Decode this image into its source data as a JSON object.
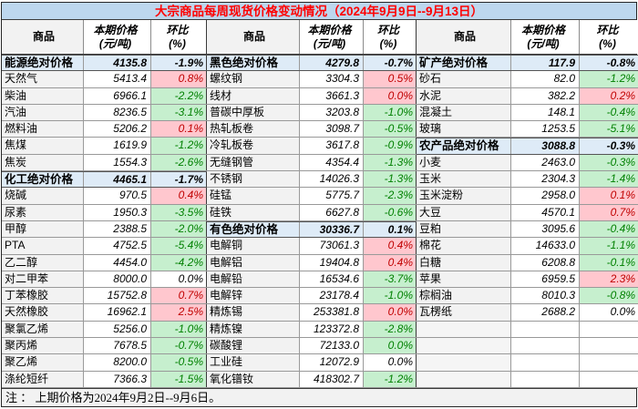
{
  "title": "大宗商品每周现货价格变动情况（2024年9月9日--9月13日）",
  "note": "注 ： 上期价格为2024年9月2日--9月6日。",
  "header": {
    "commodity": "商品",
    "price_l1": "本期价格",
    "price_l2": "(元/吨)",
    "pct_l1": "环比",
    "pct_l2": "(%)"
  },
  "colors": {
    "title_bg": "#BDD7EE",
    "title_text": "#FF0000",
    "category_row_bg": "#DEEBF7",
    "commodity_name_bg": "#F2F2F2",
    "increase_bg": "#FFC7CE",
    "increase_text": "#C00000",
    "decrease_bg": "#C6EFCE",
    "decrease_text": "#008000"
  },
  "groups": [
    {
      "rows": [
        {
          "name": "能源绝对价格",
          "price": "4135.8",
          "pct": "-1.9%",
          "t": "cat"
        },
        {
          "name": "天然气",
          "price": "5413.4",
          "pct": "0.8%",
          "t": "up"
        },
        {
          "name": "柴油",
          "price": "6966.1",
          "pct": "-2.2%",
          "t": "down"
        },
        {
          "name": "汽油",
          "price": "8236.5",
          "pct": "-3.1%",
          "t": "down"
        },
        {
          "name": "燃料油",
          "price": "5206.2",
          "pct": "0.1%",
          "t": "up"
        },
        {
          "name": "焦煤",
          "price": "1619.9",
          "pct": "-1.2%",
          "t": "down"
        },
        {
          "name": "焦炭",
          "price": "1554.3",
          "pct": "-2.6%",
          "t": "down"
        },
        {
          "name": "化工绝对价格",
          "price": "4465.1",
          "pct": "-1.7%",
          "t": "cat"
        },
        {
          "name": "烧碱",
          "price": "970.5",
          "pct": "0.4%",
          "t": "up"
        },
        {
          "name": "尿素",
          "price": "1950.3",
          "pct": "-3.5%",
          "t": "down"
        },
        {
          "name": "甲醇",
          "price": "2388.5",
          "pct": "-2.0%",
          "t": "down"
        },
        {
          "name": "PTA",
          "price": "4752.5",
          "pct": "-5.4%",
          "t": "down"
        },
        {
          "name": "乙二醇",
          "price": "4454.0",
          "pct": "-4.2%",
          "t": "down"
        },
        {
          "name": "对二甲苯",
          "price": "8000.0",
          "pct": "0.0%",
          "t": "zero"
        },
        {
          "name": "丁苯橡胶",
          "price": "15752.8",
          "pct": "0.7%",
          "t": "up"
        },
        {
          "name": "天然橡胶",
          "price": "16962.1",
          "pct": "2.5%",
          "t": "up"
        },
        {
          "name": "聚氯乙烯",
          "price": "5256.0",
          "pct": "-1.0%",
          "t": "down"
        },
        {
          "name": "聚丙烯",
          "price": "7678.5",
          "pct": "-0.7%",
          "t": "down"
        },
        {
          "name": "聚乙烯",
          "price": "8200.0",
          "pct": "-0.5%",
          "t": "down"
        },
        {
          "name": "涤纶短纤",
          "price": "7366.3",
          "pct": "-1.5%",
          "t": "down"
        }
      ]
    },
    {
      "rows": [
        {
          "name": "黑色绝对价格",
          "price": "4279.8",
          "pct": "-0.7%",
          "t": "cat"
        },
        {
          "name": "螺纹钢",
          "price": "3304.3",
          "pct": "0.5%",
          "t": "up"
        },
        {
          "name": "线材",
          "price": "3661.3",
          "pct": "0.0%",
          "t": "up"
        },
        {
          "name": "普碳中厚板",
          "price": "3203.8",
          "pct": "-1.0%",
          "t": "down"
        },
        {
          "name": "热轧板卷",
          "price": "3098.7",
          "pct": "-0.5%",
          "t": "down"
        },
        {
          "name": "冷轧板卷",
          "price": "3617.8",
          "pct": "-0.9%",
          "t": "down"
        },
        {
          "name": "无缝钢管",
          "price": "4354.4",
          "pct": "-1.3%",
          "t": "down"
        },
        {
          "name": "不锈钢",
          "price": "14026.3",
          "pct": "-1.3%",
          "t": "down"
        },
        {
          "name": "硅锰",
          "price": "5775.7",
          "pct": "-2.3%",
          "t": "down"
        },
        {
          "name": "硅铁",
          "price": "6627.8",
          "pct": "-0.6%",
          "t": "down"
        },
        {
          "name": "有色绝对价格",
          "price": "30336.7",
          "pct": "0.1%",
          "t": "cat"
        },
        {
          "name": "电解铜",
          "price": "73061.3",
          "pct": "0.4%",
          "t": "up"
        },
        {
          "name": "电解铝",
          "price": "19404.8",
          "pct": "0.4%",
          "t": "up"
        },
        {
          "name": "电解铅",
          "price": "16534.6",
          "pct": "-3.7%",
          "t": "down"
        },
        {
          "name": "电解锌",
          "price": "23178.4",
          "pct": "-1.0%",
          "t": "down"
        },
        {
          "name": "精炼锡",
          "price": "253381.8",
          "pct": "0.0%",
          "t": "up"
        },
        {
          "name": "精炼镍",
          "price": "123372.8",
          "pct": "-2.8%",
          "t": "down"
        },
        {
          "name": "碳酸锂",
          "price": "72133.0",
          "pct": "0.0%",
          "t": "down"
        },
        {
          "name": "工业硅",
          "price": "12072.9",
          "pct": "0.0%",
          "t": "zero"
        },
        {
          "name": "氧化镨钕",
          "price": "418302.7",
          "pct": "-1.2%",
          "t": "down"
        }
      ]
    },
    {
      "rows": [
        {
          "name": "矿产绝对价格",
          "price": "117.9",
          "pct": "-0.8%",
          "t": "cat"
        },
        {
          "name": "砂石",
          "price": "82.0",
          "pct": "-1.2%",
          "t": "down"
        },
        {
          "name": "水泥",
          "price": "382.2",
          "pct": "0.2%",
          "t": "up"
        },
        {
          "name": "混凝土",
          "price": "148.1",
          "pct": "-0.4%",
          "t": "down"
        },
        {
          "name": "玻璃",
          "price": "1253.5",
          "pct": "-5.1%",
          "t": "down"
        },
        {
          "name": "农产品绝对价格",
          "price": "3088.8",
          "pct": "-0.3%",
          "t": "cat"
        },
        {
          "name": "小麦",
          "price": "2463.0",
          "pct": "-0.3%",
          "t": "down"
        },
        {
          "name": "玉米",
          "price": "2304.3",
          "pct": "-1.4%",
          "t": "down"
        },
        {
          "name": "玉米淀粉",
          "price": "2958.0",
          "pct": "0.1%",
          "t": "up"
        },
        {
          "name": "大豆",
          "price": "4570.1",
          "pct": "0.7%",
          "t": "up"
        },
        {
          "name": "豆粕",
          "price": "3095.6",
          "pct": "-0.4%",
          "t": "down"
        },
        {
          "name": "棉花",
          "price": "14633.0",
          "pct": "-1.1%",
          "t": "down"
        },
        {
          "name": "白糖",
          "price": "6208.8",
          "pct": "-0.1%",
          "t": "down"
        },
        {
          "name": "苹果",
          "price": "6959.5",
          "pct": "2.3%",
          "t": "up"
        },
        {
          "name": "棕榈油",
          "price": "8010.3",
          "pct": "-0.8%",
          "t": "down"
        },
        {
          "name": "瓦楞纸",
          "price": "2688.2",
          "pct": "0.0%",
          "t": "zero"
        },
        {
          "name": "",
          "price": "",
          "pct": "",
          "t": "empty"
        },
        {
          "name": "",
          "price": "",
          "pct": "",
          "t": "empty"
        },
        {
          "name": "",
          "price": "",
          "pct": "",
          "t": "empty"
        },
        {
          "name": "",
          "price": "",
          "pct": "",
          "t": "empty"
        }
      ]
    }
  ]
}
